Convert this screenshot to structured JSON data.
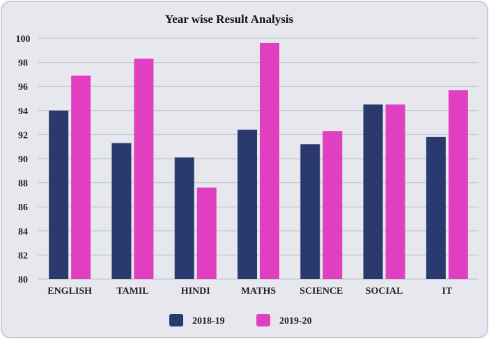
{
  "chart_data": {
    "type": "bar",
    "title": "Year wise Result Analysis",
    "xlabel": "",
    "ylabel": "",
    "ylim": [
      80,
      100
    ],
    "yticks": [
      "80",
      "82",
      "84",
      "86",
      "88",
      "90",
      "92",
      "94",
      "96",
      "98",
      "100"
    ],
    "grid": true,
    "legend_position": "bottom",
    "categories": [
      "ENGLISH",
      "TAMIL",
      "HINDI",
      "MATHS",
      "SCIENCE",
      "SOCIAL",
      "IT"
    ],
    "series": [
      {
        "name": "2018-19",
        "color": "#2a3a6e",
        "values": [
          94.0,
          91.3,
          90.1,
          92.4,
          91.2,
          94.5,
          91.8
        ]
      },
      {
        "name": "2019-20",
        "color": "#e040c0",
        "values": [
          96.9,
          98.3,
          87.6,
          99.6,
          92.3,
          94.5,
          95.7
        ]
      }
    ]
  }
}
